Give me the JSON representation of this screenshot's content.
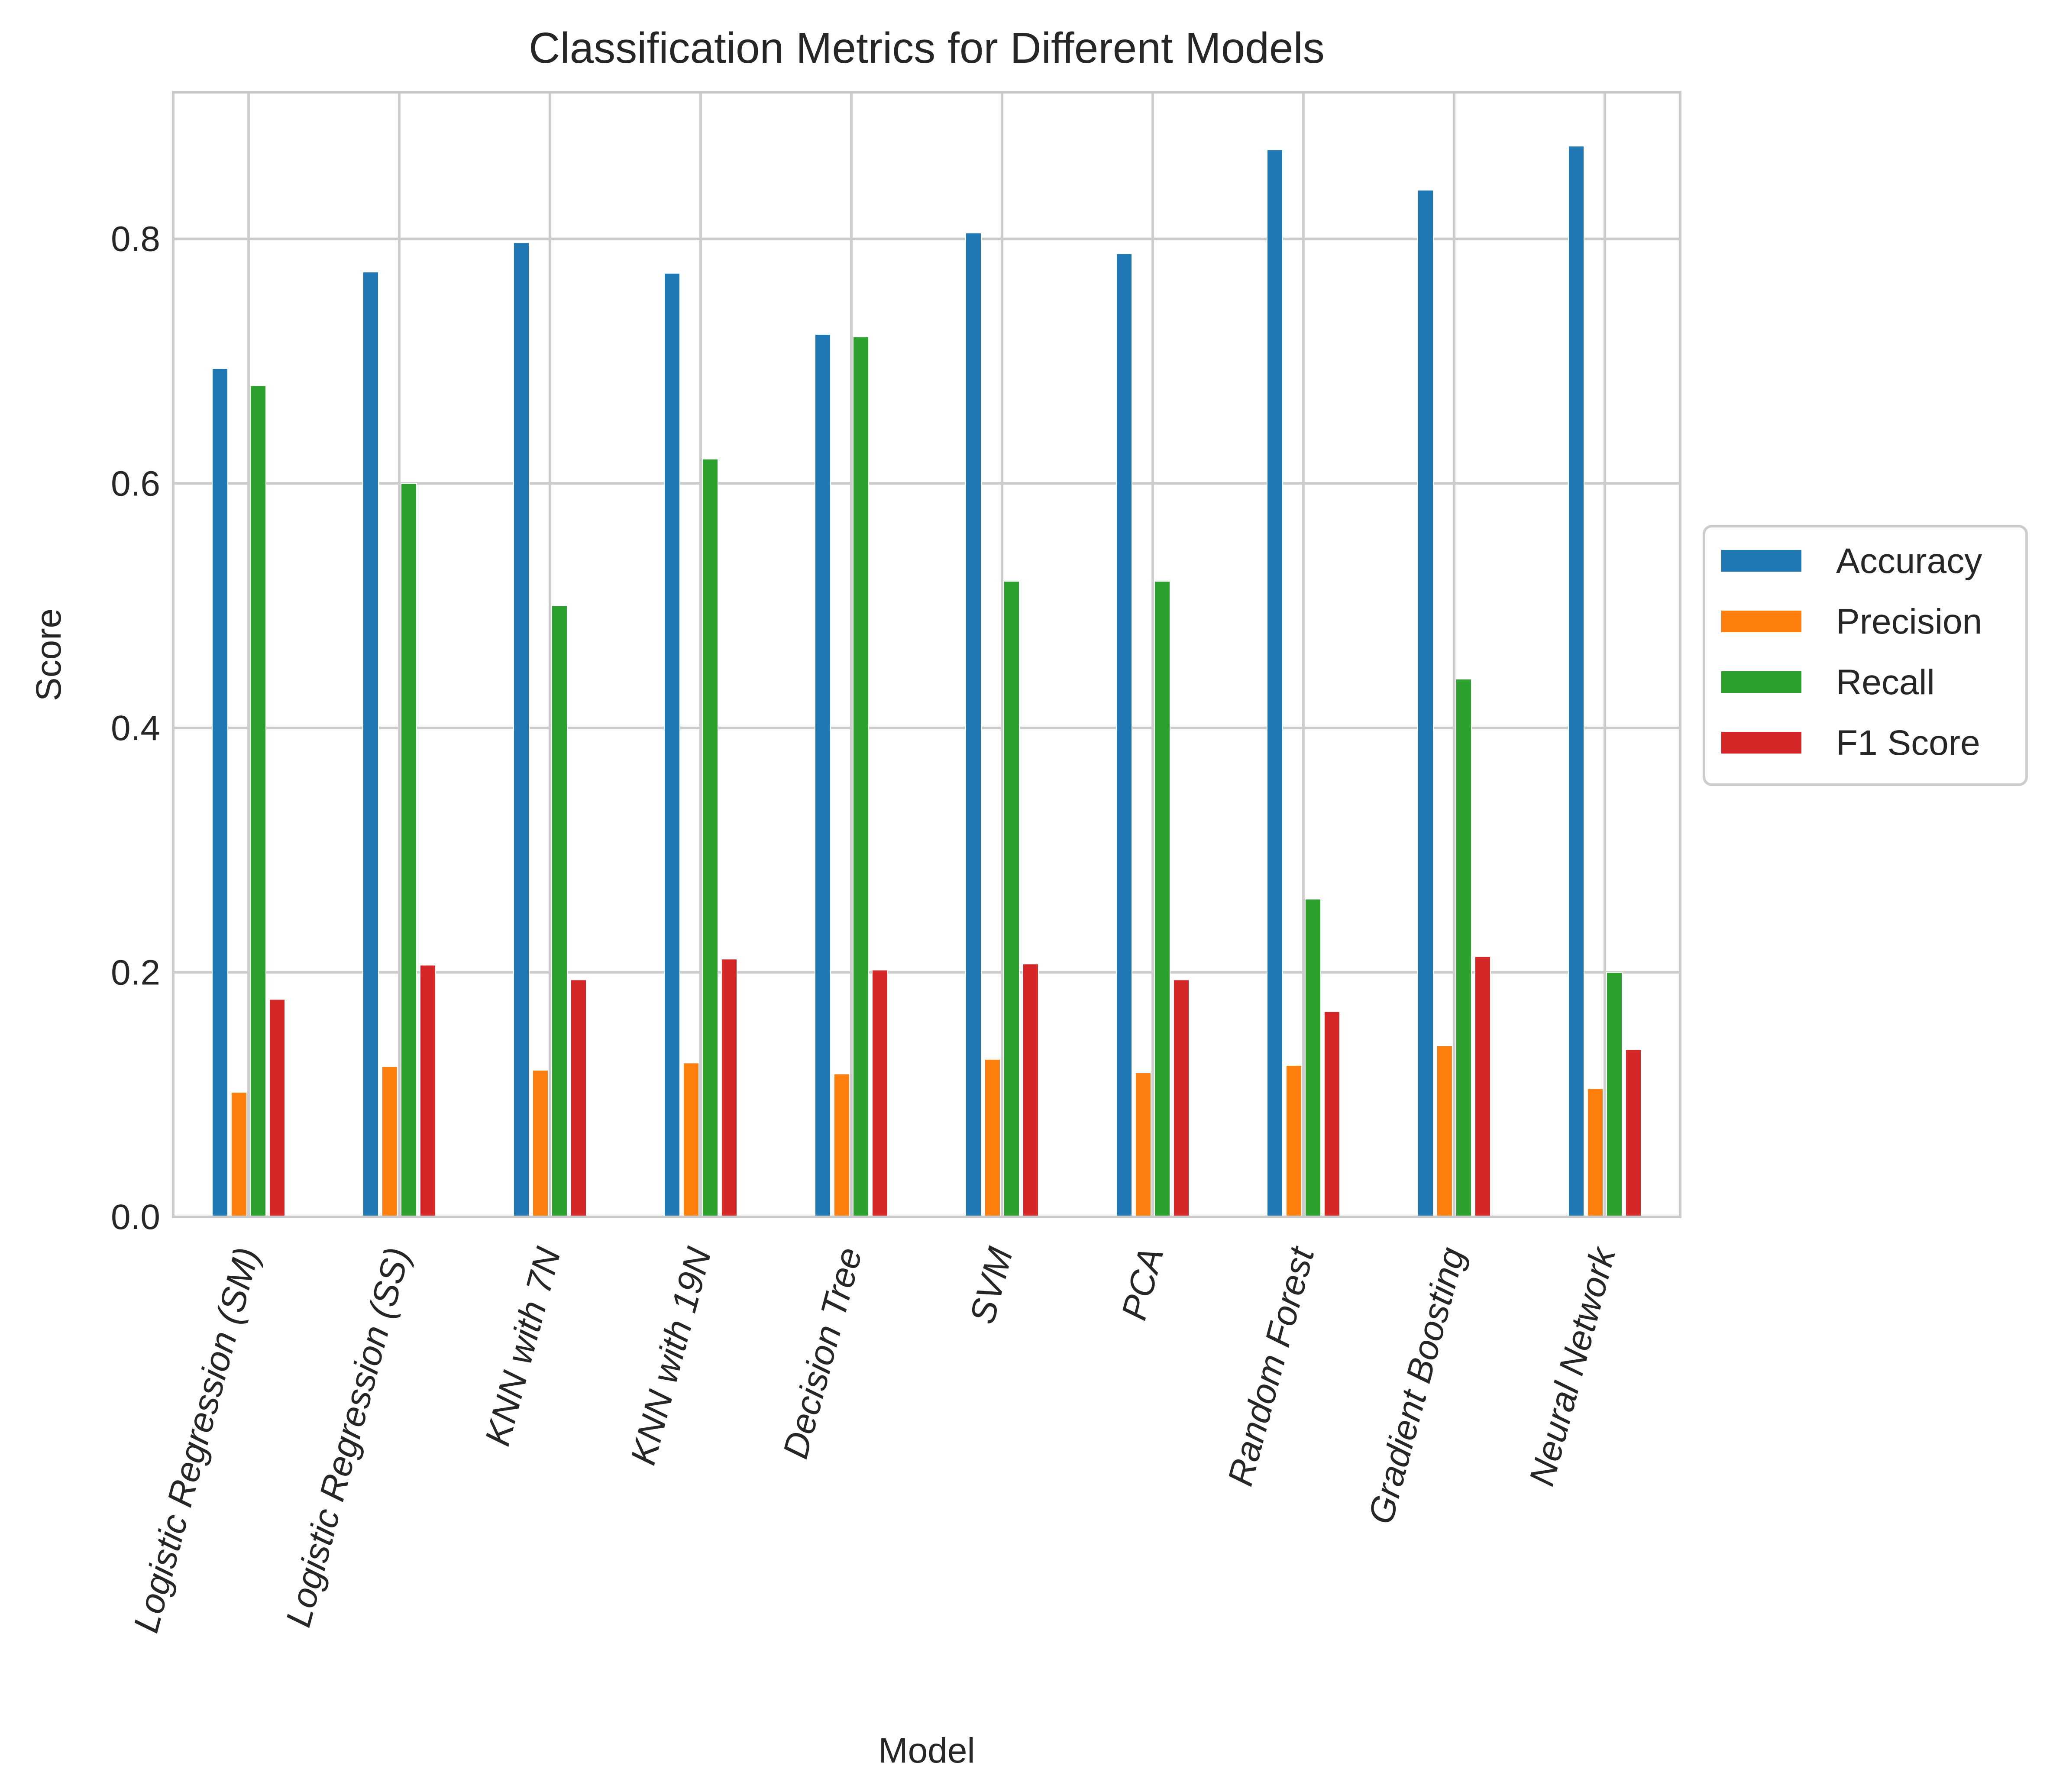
{
  "chart_data": {
    "type": "bar",
    "title": "Classification Metrics for Different Models",
    "xlabel": "Model",
    "ylabel": "Score",
    "ylim": [
      0,
      0.92
    ],
    "yticks": [
      0.0,
      0.2,
      0.4,
      0.6,
      0.8
    ],
    "ytick_labels": [
      "0.0",
      "0.2",
      "0.4",
      "0.6",
      "0.8"
    ],
    "grid": true,
    "legend_position": "center-right-outside",
    "categories": [
      "Logistic Regression (SM)",
      "Logistic Regression (SS)",
      "KNN with 7N",
      "KNN with 19N",
      "Decision Tree",
      "SVM",
      "PCA",
      "Random Forest",
      "Gradient Boosting",
      "Neural Network"
    ],
    "series": [
      {
        "name": "Accuracy",
        "color": "#1f77b4",
        "values": [
          0.694,
          0.773,
          0.797,
          0.772,
          0.722,
          0.805,
          0.788,
          0.873,
          0.84,
          0.876
        ]
      },
      {
        "name": "Precision",
        "color": "#ff7f0e",
        "values": [
          0.102,
          0.123,
          0.12,
          0.126,
          0.117,
          0.129,
          0.118,
          0.124,
          0.14,
          0.105
        ]
      },
      {
        "name": "Recall",
        "color": "#2ca02c",
        "values": [
          0.68,
          0.6,
          0.5,
          0.62,
          0.72,
          0.52,
          0.52,
          0.26,
          0.44,
          0.2
        ]
      },
      {
        "name": "F1 Score",
        "color": "#d62728",
        "values": [
          0.178,
          0.206,
          0.194,
          0.211,
          0.202,
          0.207,
          0.194,
          0.168,
          0.213,
          0.137
        ]
      }
    ]
  }
}
